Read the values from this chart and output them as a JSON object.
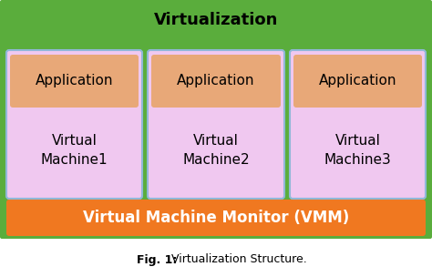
{
  "title": "Virtualization",
  "caption_bold": "Fig. 1:",
  "caption_normal": " Virtualization Structure.",
  "bg_color": "#5aad3c",
  "vmm_color": "#f07820",
  "vmm_text": "Virtual Machine Monitor (VMM)",
  "vm_box_color": "#f0c8f0",
  "vm_border_color": "#90b8d8",
  "app_box_color": "#e8a878",
  "vm_texts": [
    "Virtual\nMachine1",
    "Virtual\nMachine2",
    "Virtual\nMachine3"
  ],
  "app_label": "Application",
  "title_fontsize": 13,
  "vmm_fontsize": 12,
  "app_fontsize": 11,
  "vm_fontsize": 11,
  "caption_fontsize": 9,
  "fig_width": 4.74,
  "fig_height": 3.04,
  "dpi": 100
}
